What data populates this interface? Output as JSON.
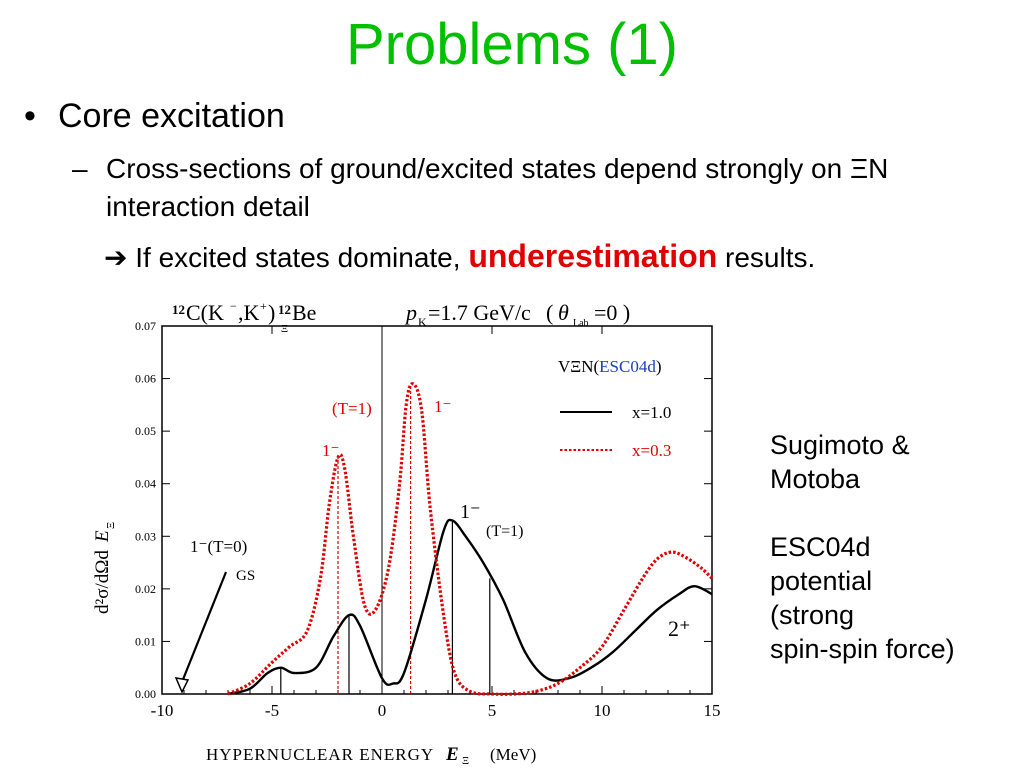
{
  "slide": {
    "title": "Problems (1)",
    "bullet": {
      "marker": "•",
      "text": "Core excitation"
    },
    "sub_bullet": {
      "marker": "–",
      "text": "Cross-sections of ground/excited states depend strongly on ΞN interaction detail"
    },
    "arrow_line": {
      "arrow": "➔",
      "before": "If excited states dominate,",
      "emphasis": "underestimation",
      "after": "results."
    },
    "side_note": {
      "authors_line1": "Sugimoto &",
      "authors_line2": "Motoba",
      "potential_line1": "ESC04d",
      "potential_line2": "potential",
      "potential_line3": "(strong",
      "potential_line4": "spin-spin force)"
    },
    "colors": {
      "title": "#00c000",
      "emphasis": "#e00000"
    }
  },
  "chart_data": {
    "type": "line",
    "title": "12C(K−,K+)12ΞBe   pK=1.7 GeV/c  (θLab=0 )",
    "xlabel": "HYPERNUCLEAR ENERGY E_Ξ (MeV)",
    "ylabel": "d²σ/dΩdE_Ξ",
    "xlim": [
      -10,
      15
    ],
    "ylim": [
      0,
      0.07
    ],
    "xticks": [
      "-10",
      "-5",
      "0",
      "5",
      "10",
      "15"
    ],
    "yticks": [
      "0.00",
      "0.01",
      "0.02",
      "0.03",
      "0.04",
      "0.05",
      "0.06",
      "0.07"
    ],
    "grid": false,
    "legend_title": "VΞN(ESC04d)",
    "legend_placement": "top-right",
    "series": [
      {
        "name": "x=1.0",
        "color": "#000000",
        "style": "solid",
        "x": [
          -7,
          -6,
          -5.2,
          -4.6,
          -4,
          -3,
          -2.2,
          -1.5,
          -1,
          0,
          0.5,
          1,
          2,
          2.8,
          3.2,
          3.8,
          4.6,
          5.5,
          6.5,
          7.5,
          8.5,
          9.5,
          10.5,
          11.5,
          12.5,
          13.5,
          14.2,
          15
        ],
        "y": [
          0,
          0.001,
          0.004,
          0.005,
          0.004,
          0.005,
          0.011,
          0.015,
          0.013,
          0.003,
          0.002,
          0.004,
          0.018,
          0.031,
          0.033,
          0.03,
          0.025,
          0.018,
          0.008,
          0.003,
          0.003,
          0.005,
          0.008,
          0.012,
          0.016,
          0.019,
          0.0205,
          0.019
        ]
      },
      {
        "name": "x=0.3",
        "color": "#e00000",
        "style": "dotted",
        "x": [
          -7,
          -6,
          -5,
          -4.2,
          -3.4,
          -2.8,
          -2.4,
          -2,
          -1.7,
          -1.3,
          -0.8,
          -0.3,
          0.3,
          0.8,
          1.1,
          1.4,
          1.8,
          2.2,
          2.8,
          3.3,
          4,
          5,
          6,
          7,
          8,
          9,
          10,
          11,
          12,
          12.6,
          13.2,
          13.8,
          14.5,
          15
        ],
        "y": [
          0,
          0.002,
          0.006,
          0.009,
          0.012,
          0.022,
          0.036,
          0.045,
          0.043,
          0.03,
          0.017,
          0.016,
          0.024,
          0.04,
          0.055,
          0.059,
          0.054,
          0.035,
          0.015,
          0.004,
          0.0005,
          0,
          0,
          0.0005,
          0.002,
          0.005,
          0.009,
          0.016,
          0.023,
          0.026,
          0.027,
          0.026,
          0.024,
          0.022
        ]
      }
    ],
    "state_markers": [
      {
        "x": -4.6,
        "y": 0.005,
        "color": "#000000"
      },
      {
        "x": -1.5,
        "y": 0.015,
        "color": "#000000"
      },
      {
        "x": 3.2,
        "y": 0.033,
        "color": "#000000"
      },
      {
        "x": 4.9,
        "y": 0.022,
        "color": "#000000"
      },
      {
        "x": -2.0,
        "y": 0.045,
        "color": "#e00000"
      },
      {
        "x": 1.3,
        "y": 0.059,
        "color": "#e00000"
      }
    ],
    "annotations": {
      "gs_state": "1⁻(T=0)",
      "gs_label": "GS",
      "red_1minus_left": "1⁻",
      "red_T1": "(T=1)",
      "red_1minus_right": "1⁻",
      "black_1minus": "1⁻",
      "black_T1": "(T=1)",
      "two_plus": "2⁺"
    }
  }
}
